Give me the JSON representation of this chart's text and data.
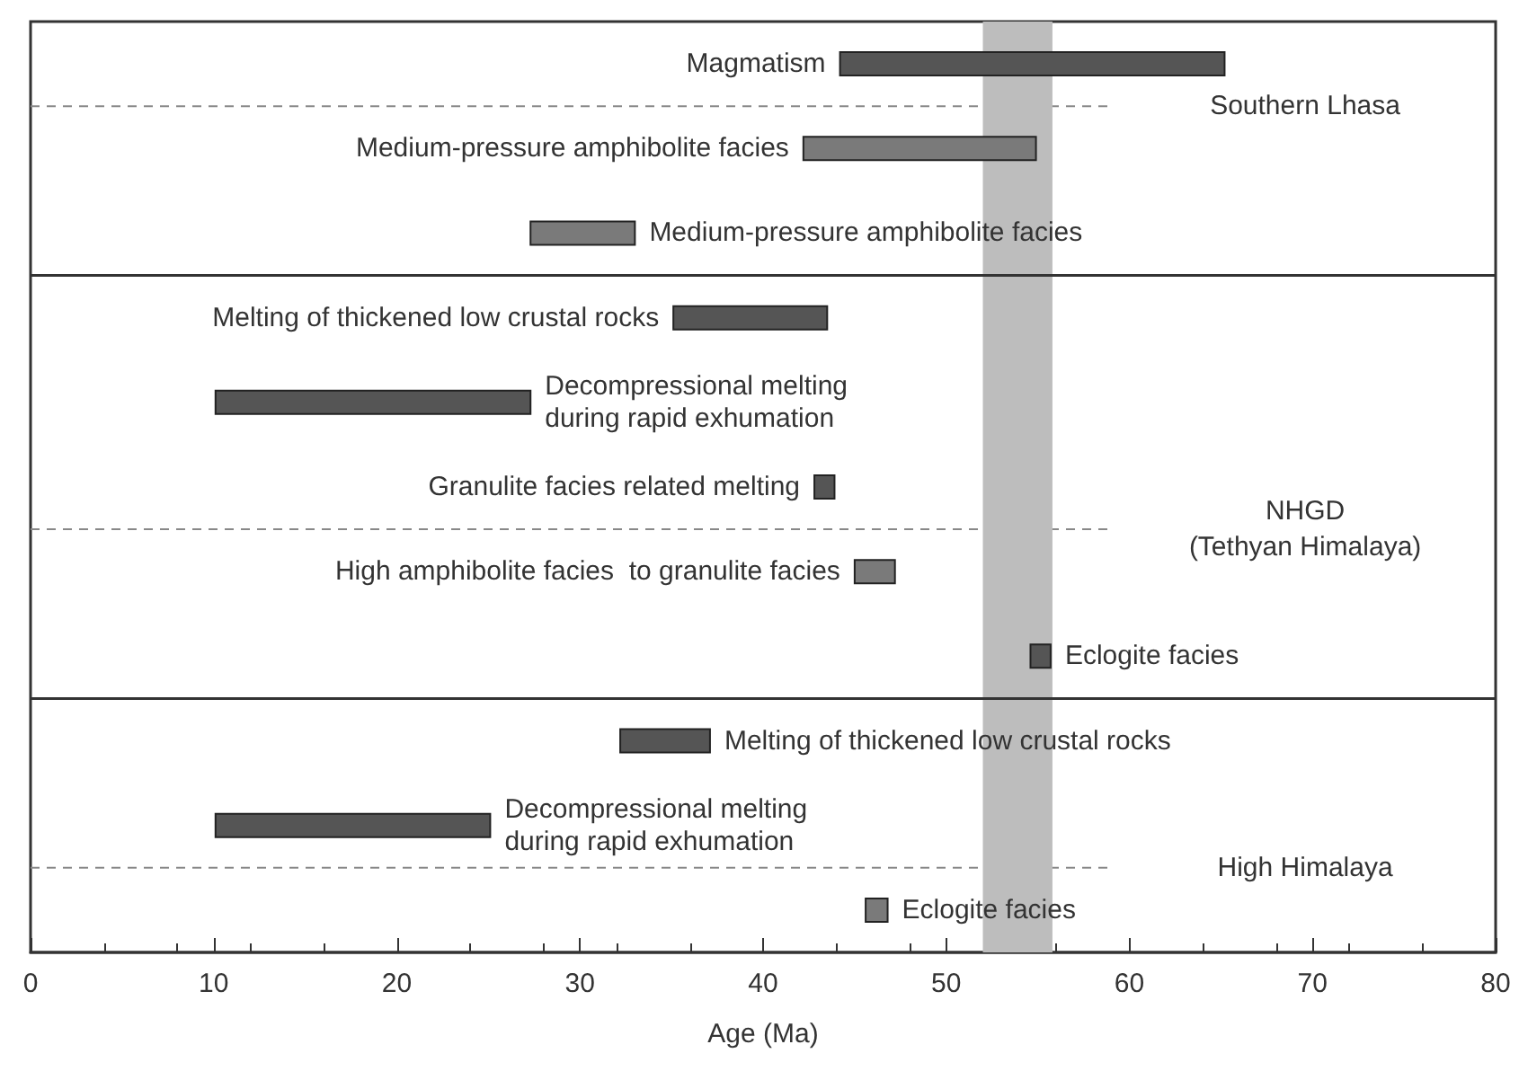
{
  "chart_data": {
    "type": "bar",
    "orientation": "horizontal",
    "categories": [
      null,
      null,
      null,
      null,
      null,
      null,
      null,
      null,
      null,
      null,
      null
    ],
    "base": [
      44.2,
      42.2,
      27.3,
      35.1,
      10.1,
      42.8,
      45,
      54.6,
      32.2,
      10.1,
      45.6
    ],
    "values": [
      21,
      12.7,
      5.7,
      8.4,
      17.2,
      1.1,
      2.2,
      1.1,
      4.9,
      15,
      1.2
    ],
    "colors": [
      "#555555",
      "#7a7a7a",
      "#7a7a7a",
      "#555555",
      "#555555",
      "#555555",
      "#7a7a7a",
      "#555555",
      "#555555",
      "#555555",
      "#7a7a7a"
    ],
    "xlim": [
      0,
      80
    ],
    "xticks": [
      0,
      10,
      20,
      30,
      40,
      50,
      60,
      70,
      80
    ],
    "xlabel": "Age (Ma)",
    "bands": [
      {
        "axis": "x",
        "from": 52,
        "to": 55.8,
        "color": "#bdbdbd"
      }
    ],
    "annotations": [
      {
        "text": "Magmatism",
        "x": 44.2
      },
      {
        "text": "Medium-pressure amphibolite facies",
        "x": 42.2
      },
      {
        "text": "Medium-pressure amphibolite facies",
        "x": 33
      },
      {
        "text": "Melting of thickened low crustal rocks",
        "x": 35.1
      },
      {
        "text": "Decompressional melting\nduring rapid exhumation",
        "x": 27.3
      },
      {
        "text": "Granulite facies related melting",
        "x": 42.8
      },
      {
        "text": "High amphibolite facies  to granulite facies",
        "x": 45
      },
      {
        "text": "Eclogite facies",
        "x": 55.7
      },
      {
        "text": "Melting of thickened low crustal rocks",
        "x": 37.1
      },
      {
        "text": "Decompressional melting\nduring rapid exhumation",
        "x": 25.1
      },
      {
        "text": "Eclogite facies",
        "x": 46.8
      },
      "Southern Lhasa",
      "NHGD\n(Tethyan Himalaya)",
      "High Himalaya"
    ]
  }
}
